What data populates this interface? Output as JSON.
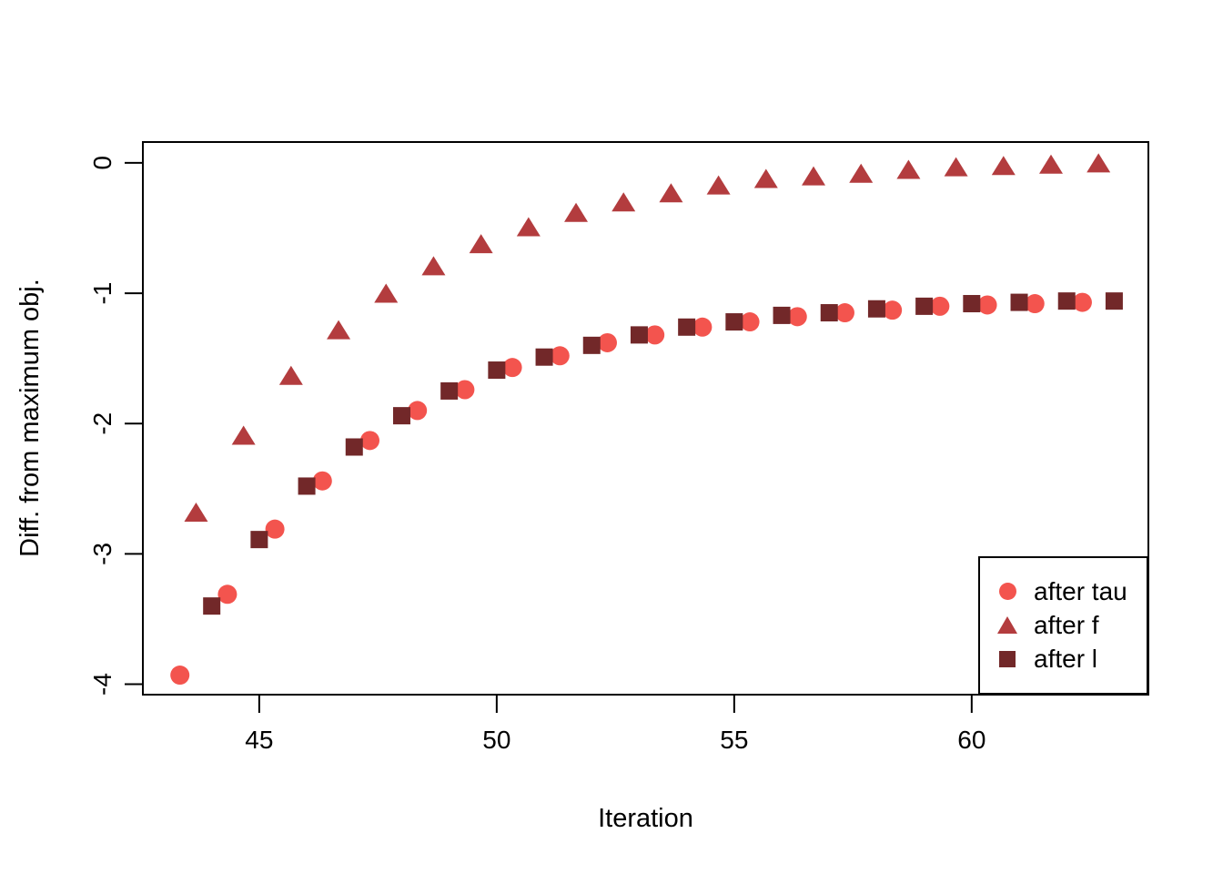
{
  "figure": {
    "background": "#ffffff",
    "text_color": "#000000"
  },
  "chart_data": {
    "type": "scatter",
    "title": "",
    "xlabel": "Iteration",
    "ylabel": "Diff. from maximum obj.",
    "xlim": [
      42.55,
      63.72
    ],
    "ylim": [
      -4.08,
      0.16
    ],
    "x_ticks": [
      45,
      50,
      55,
      60
    ],
    "y_ticks": [
      0,
      -1,
      -2,
      -3,
      -4
    ],
    "grid": false,
    "box": true,
    "legend_position": "bottom-right",
    "series": [
      {
        "name": "after tau",
        "marker": "circle",
        "color": "#F3544E",
        "points": [
          [
            43.33,
            -3.93
          ],
          [
            44.33,
            -3.31
          ],
          [
            45.33,
            -2.81
          ],
          [
            46.33,
            -2.44
          ],
          [
            47.33,
            -2.13
          ],
          [
            48.33,
            -1.9
          ],
          [
            49.33,
            -1.74
          ],
          [
            50.33,
            -1.57
          ],
          [
            51.33,
            -1.48
          ],
          [
            52.33,
            -1.38
          ],
          [
            53.33,
            -1.32
          ],
          [
            54.33,
            -1.26
          ],
          [
            55.33,
            -1.22
          ],
          [
            56.33,
            -1.18
          ],
          [
            57.33,
            -1.15
          ],
          [
            58.33,
            -1.13
          ],
          [
            59.33,
            -1.1
          ],
          [
            60.33,
            -1.09
          ],
          [
            61.33,
            -1.08
          ],
          [
            62.33,
            -1.07
          ]
        ]
      },
      {
        "name": "after f",
        "marker": "triangle",
        "color": "#B33C3E",
        "points": [
          [
            43.67,
            -2.69
          ],
          [
            44.67,
            -2.1
          ],
          [
            45.67,
            -1.64
          ],
          [
            46.67,
            -1.29
          ],
          [
            47.67,
            -1.01
          ],
          [
            48.67,
            -0.8
          ],
          [
            49.67,
            -0.63
          ],
          [
            50.67,
            -0.5
          ],
          [
            51.67,
            -0.39
          ],
          [
            52.67,
            -0.31
          ],
          [
            53.67,
            -0.24
          ],
          [
            54.67,
            -0.18
          ],
          [
            55.67,
            -0.13
          ],
          [
            56.67,
            -0.11
          ],
          [
            57.67,
            -0.09
          ],
          [
            58.67,
            -0.06
          ],
          [
            59.67,
            -0.04
          ],
          [
            60.67,
            -0.03
          ],
          [
            61.67,
            -0.02
          ],
          [
            62.67,
            -0.01
          ]
        ]
      },
      {
        "name": "after l",
        "marker": "square",
        "color": "#722829",
        "points": [
          [
            44,
            -3.4
          ],
          [
            45,
            -2.89
          ],
          [
            46,
            -2.48
          ],
          [
            47,
            -2.18
          ],
          [
            48,
            -1.94
          ],
          [
            49,
            -1.75
          ],
          [
            50,
            -1.59
          ],
          [
            51,
            -1.49
          ],
          [
            52,
            -1.4
          ],
          [
            53,
            -1.32
          ],
          [
            54,
            -1.26
          ],
          [
            55,
            -1.22
          ],
          [
            56,
            -1.17
          ],
          [
            57,
            -1.15
          ],
          [
            58,
            -1.12
          ],
          [
            59,
            -1.1
          ],
          [
            60,
            -1.08
          ],
          [
            61,
            -1.07
          ],
          [
            62,
            -1.06
          ],
          [
            63,
            -1.06
          ]
        ]
      }
    ]
  },
  "legend": {
    "items": [
      {
        "label": "after tau",
        "marker": "circle"
      },
      {
        "label": "after f",
        "marker": "triangle"
      },
      {
        "label": "after l",
        "marker": "square"
      }
    ]
  }
}
